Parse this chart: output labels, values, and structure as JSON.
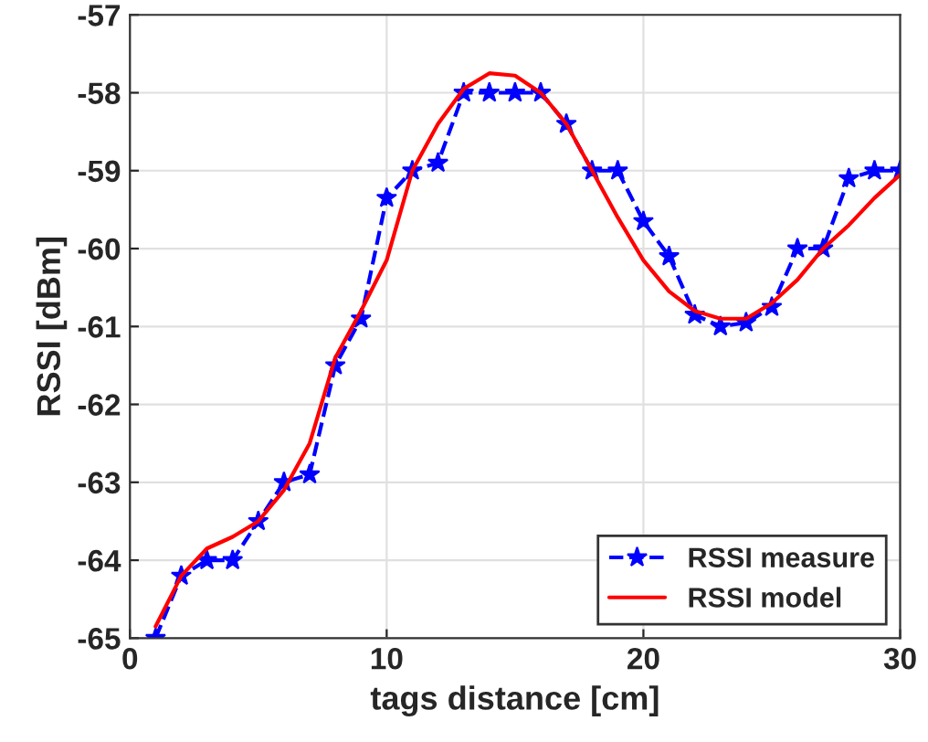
{
  "chart_data": {
    "type": "line",
    "xlabel": "tags distance [cm]",
    "ylabel": "RSSI [dBm]",
    "x": [
      1,
      2,
      3,
      4,
      5,
      6,
      7,
      8,
      9,
      10,
      11,
      12,
      13,
      14,
      15,
      16,
      17,
      18,
      19,
      20,
      21,
      22,
      23,
      24,
      25,
      26,
      27,
      28,
      29,
      30
    ],
    "series": [
      {
        "name": "RSSI measure",
        "color": "#0000ff",
        "line_style": "dashed",
        "marker": "star",
        "values": [
          -65,
          -64.2,
          -64.0,
          -64.0,
          -63.5,
          -63.0,
          -62.9,
          -61.5,
          -60.9,
          -59.35,
          -59.0,
          -58.9,
          -58.0,
          -58.0,
          -58.0,
          -58.0,
          -58.4,
          -59.0,
          -59.0,
          -59.65,
          -60.1,
          -60.85,
          -61.0,
          -60.95,
          -60.75,
          -60.0,
          -60.0,
          -59.1,
          -59.0,
          -59.0
        ]
      },
      {
        "name": "RSSI model",
        "color": "#ff0000",
        "line_style": "solid",
        "marker": "none",
        "values": [
          -64.85,
          -64.2,
          -63.85,
          -63.7,
          -63.5,
          -63.1,
          -62.5,
          -61.4,
          -60.8,
          -60.15,
          -59.0,
          -58.4,
          -57.95,
          -57.75,
          -57.78,
          -58.0,
          -58.4,
          -59.0,
          -59.6,
          -60.15,
          -60.55,
          -60.8,
          -60.9,
          -60.9,
          -60.7,
          -60.4,
          -60.0,
          -59.7,
          -59.35,
          -59.05
        ]
      }
    ],
    "xlim": [
      0,
      30
    ],
    "xticks": [
      0,
      10,
      20,
      30
    ],
    "ylim": [
      -65,
      -57
    ],
    "yticks": [
      -65,
      -64,
      -63,
      -62,
      -61,
      -60,
      -59,
      -58,
      -57
    ],
    "grid": true,
    "legend": "bottom right"
  }
}
